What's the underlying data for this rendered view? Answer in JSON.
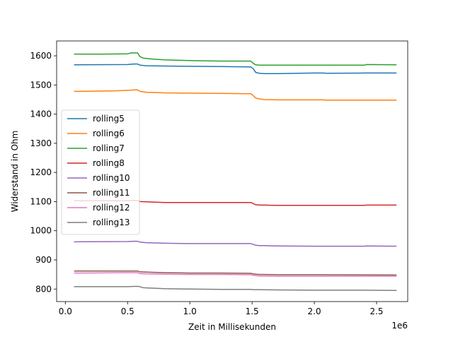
{
  "chart_data": {
    "type": "line",
    "xlabel": "Zeit in Millisekunden",
    "ylabel": "Widerstand in Ohm",
    "x_offset_label": "1e6",
    "x_ticks": [
      0.0,
      0.5,
      1.0,
      1.5,
      2.0,
      2.5
    ],
    "x_tick_labels": [
      "0.0",
      "0.5",
      "1.0",
      "1.5",
      "2.0",
      "2.5"
    ],
    "y_ticks": [
      800,
      900,
      1000,
      1100,
      1200,
      1300,
      1400,
      1500,
      1600
    ],
    "xlim": [
      -0.07,
      2.75
    ],
    "ylim": [
      757,
      1651
    ],
    "x_units": "1e6 ms",
    "legend_position": "center-left",
    "series": [
      {
        "name": "rolling5",
        "color": "#1f77b4",
        "x": [
          0.07,
          0.5,
          0.55,
          0.58,
          0.6,
          0.65,
          0.8,
          1.0,
          1.25,
          1.49,
          1.51,
          1.53,
          1.56,
          1.6,
          1.7,
          2.0,
          2.07,
          2.1,
          2.4,
          2.66
        ],
        "y": [
          1569,
          1570,
          1572,
          1572,
          1568,
          1566,
          1565,
          1564,
          1563,
          1562,
          1555,
          1543,
          1540,
          1539,
          1539,
          1541,
          1541,
          1540,
          1541,
          1541
        ]
      },
      {
        "name": "rolling6",
        "color": "#ff7f0e",
        "x": [
          0.07,
          0.4,
          0.52,
          0.56,
          0.58,
          0.6,
          0.65,
          0.8,
          1.0,
          1.25,
          1.49,
          1.51,
          1.53,
          1.56,
          1.6,
          1.7,
          2.0,
          2.07,
          2.1,
          2.4,
          2.66
        ],
        "y": [
          1478,
          1480,
          1482,
          1483,
          1483,
          1478,
          1475,
          1473,
          1472,
          1471,
          1470,
          1463,
          1455,
          1452,
          1450,
          1449,
          1449,
          1449,
          1448,
          1448,
          1448
        ]
      },
      {
        "name": "rolling7",
        "color": "#2ca02c",
        "x": [
          0.07,
          0.3,
          0.5,
          0.53,
          0.58,
          0.6,
          0.63,
          0.7,
          0.8,
          1.0,
          1.25,
          1.49,
          1.51,
          1.53,
          1.56,
          1.6,
          1.7,
          2.0,
          2.4,
          2.42,
          2.66
        ],
        "y": [
          1606,
          1606,
          1607,
          1610,
          1610,
          1597,
          1592,
          1589,
          1586,
          1584,
          1582,
          1582,
          1574,
          1569,
          1568,
          1568,
          1568,
          1568,
          1568,
          1570,
          1569
        ]
      },
      {
        "name": "rolling8",
        "color": "#d62728",
        "x": [
          0.07,
          0.5,
          0.55,
          0.58,
          0.6,
          0.65,
          0.8,
          1.0,
          1.25,
          1.49,
          1.51,
          1.53,
          1.56,
          1.6,
          1.7,
          2.0,
          2.4,
          2.42,
          2.66
        ],
        "y": [
          1103,
          1103,
          1104,
          1104,
          1100,
          1099,
          1097,
          1097,
          1097,
          1097,
          1093,
          1089,
          1088,
          1088,
          1087,
          1087,
          1087,
          1088,
          1088
        ]
      },
      {
        "name": "rolling10",
        "color": "#9467bd",
        "x": [
          0.07,
          0.5,
          0.55,
          0.58,
          0.6,
          0.65,
          0.8,
          1.0,
          1.25,
          1.49,
          1.51,
          1.53,
          1.56,
          1.6,
          1.7,
          2.0,
          2.4,
          2.42,
          2.66
        ],
        "y": [
          962,
          963,
          964,
          964,
          961,
          959,
          957,
          956,
          956,
          956,
          953,
          950,
          949,
          949,
          948,
          947,
          947,
          948,
          947
        ]
      },
      {
        "name": "rolling11",
        "color": "#8c564b",
        "x": [
          0.07,
          0.5,
          0.58,
          0.6,
          0.65,
          0.8,
          1.0,
          1.25,
          1.49,
          1.51,
          1.53,
          1.56,
          1.6,
          1.7,
          2.0,
          2.66
        ],
        "y": [
          862,
          862,
          862,
          859,
          858,
          856,
          855,
          855,
          854,
          852,
          851,
          850,
          850,
          849,
          849,
          848
        ]
      },
      {
        "name": "rolling12",
        "color": "#e377c2",
        "x": [
          0.07,
          0.5,
          0.58,
          0.6,
          0.65,
          0.8,
          1.0,
          1.25,
          1.49,
          1.51,
          1.53,
          1.56,
          1.6,
          1.7,
          2.0,
          2.66
        ],
        "y": [
          855,
          856,
          856,
          853,
          852,
          851,
          850,
          850,
          849,
          847,
          846,
          845,
          845,
          844,
          844,
          844
        ]
      },
      {
        "name": "rolling13",
        "color": "#7f7f7f",
        "x": [
          0.07,
          0.5,
          0.55,
          0.58,
          0.6,
          0.62,
          0.65,
          0.7,
          0.8,
          1.0,
          1.25,
          1.49,
          1.51,
          1.55,
          1.7,
          2.0,
          2.4,
          2.66
        ],
        "y": [
          808,
          808,
          809,
          809,
          808,
          805,
          804,
          803,
          801,
          800,
          799,
          799,
          798,
          798,
          797,
          796,
          796,
          795
        ]
      }
    ]
  }
}
